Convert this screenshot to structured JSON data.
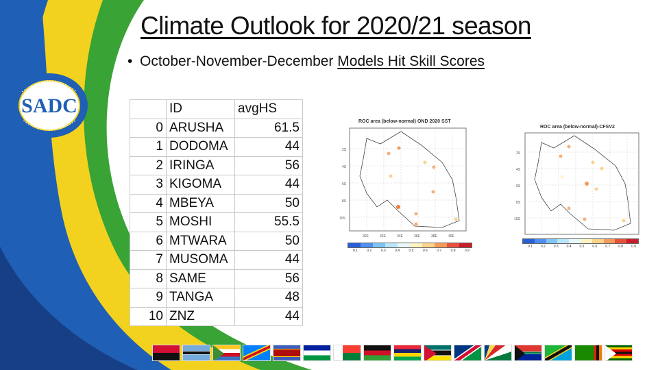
{
  "slide": {
    "title": "Climate Outlook for 2020/21 season",
    "bullet_prefix": "October-November-December ",
    "bullet_underlined": "Models Hit Skill Scores"
  },
  "logo": {
    "name": "SADC",
    "ring_text": "SOUTHERN AFRICAN DEVELOPMENT COMMUNITY • TOWARDS A COMMON FUTURE"
  },
  "table": {
    "headers": [
      "",
      "ID",
      "avgHS"
    ],
    "rows": [
      [
        "0",
        "ARUSHA",
        "61.5"
      ],
      [
        "1",
        "DODOMA",
        "44"
      ],
      [
        "2",
        "IRINGA",
        "56"
      ],
      [
        "3",
        "KIGOMA",
        "44"
      ],
      [
        "4",
        "MBEYA",
        "50"
      ],
      [
        "5",
        "MOSHI",
        "55.5"
      ],
      [
        "6",
        "MTWARA",
        "50"
      ],
      [
        "7",
        "MUSOMA",
        "44"
      ],
      [
        "8",
        "SAME",
        "56"
      ],
      [
        "9",
        "TANGA",
        "48"
      ],
      [
        "10",
        "ZNZ",
        "44"
      ]
    ]
  },
  "maps": [
    {
      "title": "ROC area (below-normal) OND 2020 SST",
      "colorbar_labels": [
        "0.1",
        "0.2",
        "0.3",
        "0.4",
        "0.5",
        "0.6",
        "0.7",
        "0.8",
        "0.9"
      ]
    },
    {
      "title": "ROC area (below-normal)-CFSV2",
      "colorbar_labels": [
        "0.1",
        "0.2",
        "0.3",
        "0.4",
        "0.5",
        "0.6",
        "0.7",
        "0.8",
        "0.9"
      ]
    }
  ],
  "colors": {
    "swoosh_blue": "#1f5fb5",
    "swoosh_green": "#3aa335",
    "swoosh_yellow": "#f2d21e",
    "colorbar": [
      "#2a5fd8",
      "#4f8ff0",
      "#7fc4f6",
      "#b9e6f8",
      "#e8f7fb",
      "#fff3c4",
      "#fbd38a",
      "#f49b5c",
      "#e8503e",
      "#c81e2a"
    ]
  },
  "flags_count": 16
}
